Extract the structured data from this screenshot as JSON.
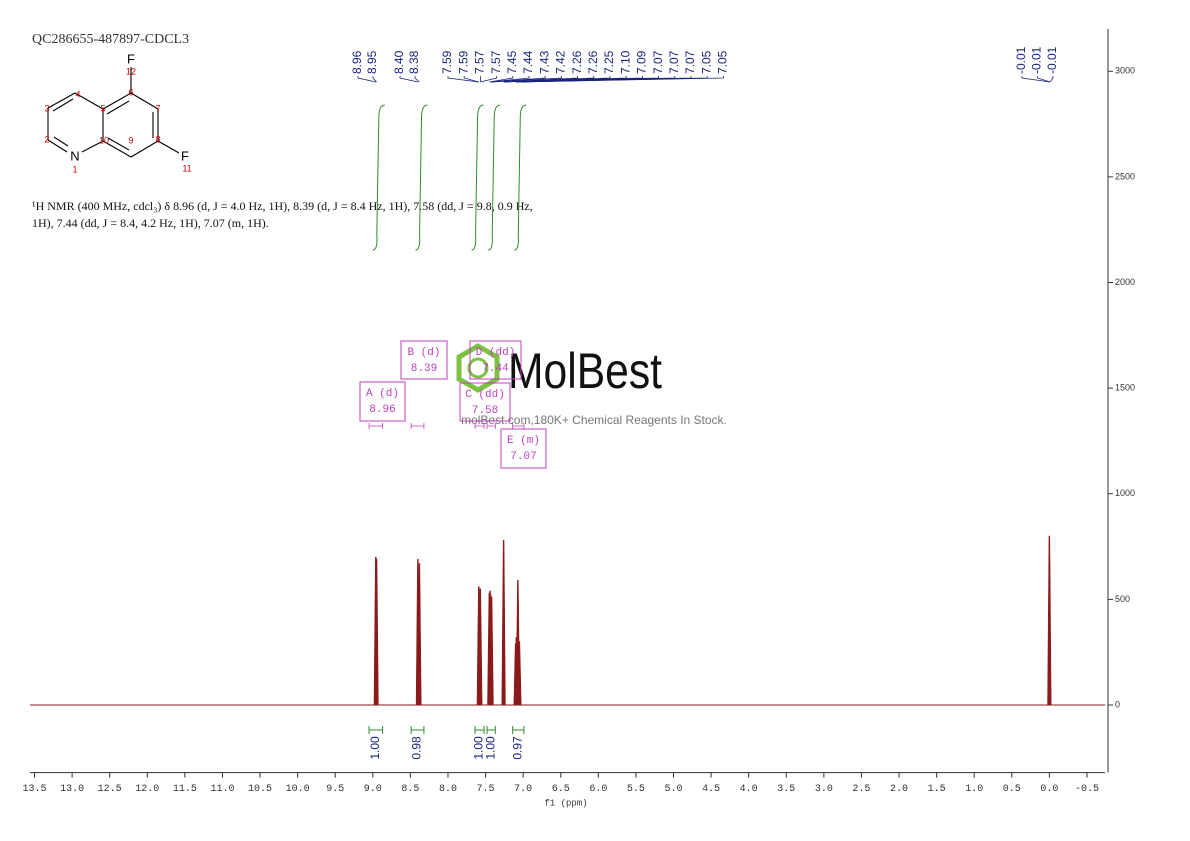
{
  "chart_data": {
    "type": "nmr",
    "title": "QC286655-487897-CDCL3",
    "description": [
      "¹H NMR (400 MHz, cdcl₃) δ 8.96 (d, J = 4.0 Hz, 1H), 8.39 (d, J = 8.4 Hz, 1H), 7.58 (dd, J = 9.8, 0.9 Hz,",
      "1H), 7.44 (dd, J = 8.4, 4.2 Hz, 1H), 7.07 (m, 1H)."
    ],
    "xlabel": "f1 (ppm)",
    "xlim": [
      13.6,
      -0.7
    ],
    "xticks": [
      13.5,
      {
        "value": 13,
        "label": "13.0"
      },
      12.5,
      {
        "value": 12,
        "label": "12.0"
      },
      11.5,
      {
        "value": 11,
        "label": "11.0"
      },
      10.5,
      {
        "value": 10,
        "label": "10.0"
      },
      9.5,
      {
        "value": 9,
        "label": "9.0"
      },
      8.5,
      {
        "value": 8,
        "label": "8.0"
      },
      7.5,
      {
        "value": 7,
        "label": "7.0"
      },
      6.5,
      {
        "value": 6,
        "label": "6.0"
      },
      5.5,
      {
        "value": 5,
        "label": "5.0"
      },
      4.5,
      {
        "value": 4,
        "label": "4.0"
      },
      3.5,
      {
        "value": 3,
        "label": "3.0"
      },
      2.5,
      {
        "value": 2,
        "label": "2.0"
      },
      1.5,
      {
        "value": 1,
        "label": "1.0"
      },
      0.5,
      {
        "value": 0,
        "label": "0.0"
      },
      -0.5
    ],
    "ylim": [
      -320,
      3200
    ],
    "yticks": [
      0,
      500,
      1000,
      1500,
      2000,
      2500,
      3000
    ],
    "color": "#8b1a1a",
    "x": [
      8.96,
      8.95,
      8.4,
      8.38,
      7.59,
      7.57,
      7.45,
      7.44,
      7.43,
      7.42,
      7.26,
      7.1,
      7.09,
      7.07,
      7.05,
      0.0
    ],
    "values": [
      700,
      690,
      690,
      670,
      560,
      550,
      530,
      540,
      520,
      510,
      780,
      290,
      320,
      590,
      300,
      800
    ],
    "peak_labels": [
      8.96,
      8.95,
      {
        "value": 8.4,
        "label": "8.40"
      },
      8.38,
      7.59,
      7.59,
      7.57,
      7.57,
      7.45,
      7.44,
      7.43,
      7.42,
      7.26,
      7.26,
      7.25,
      {
        "value": 7.1,
        "label": "7.10"
      },
      7.09,
      7.07,
      7.07,
      7.07,
      7.05,
      7.05,
      -0.01,
      -0.01,
      -0.01
    ],
    "integrals": {
      "ranges": [
        [
          9.05,
          8.87
        ],
        [
          8.49,
          8.32
        ],
        [
          7.64,
          7.52
        ],
        [
          7.48,
          7.37
        ],
        [
          7.14,
          6.99
        ]
      ],
      "values": [
        {
          "value": 1,
          "label": "1.00"
        },
        0.98,
        {
          "value": 1,
          "label": "1.00"
        },
        {
          "value": 1,
          "label": "1.00"
        },
        0.97
      ],
      "color": "#2e8b2e"
    },
    "multiplets": [
      {
        "name": "A (d)",
        "shift": 8.96
      },
      {
        "name": "B (d)",
        "shift": 8.39
      },
      {
        "name": "C (dd)",
        "shift": 7.58
      },
      {
        "name": "D (dd)",
        "shift": 7.44
      },
      {
        "name": "E (m)",
        "shift": 7.07
      }
    ],
    "structure": {
      "atoms": [
        "F",
        "12",
        "6",
        "5",
        "4",
        "3",
        "2",
        "N",
        "1",
        "10",
        "9",
        "8",
        "7",
        "F",
        "11"
      ]
    },
    "watermark": {
      "logo": "MolBest",
      "tagline": "molBest.com,180K+ Chemical Reagents In Stock."
    }
  }
}
